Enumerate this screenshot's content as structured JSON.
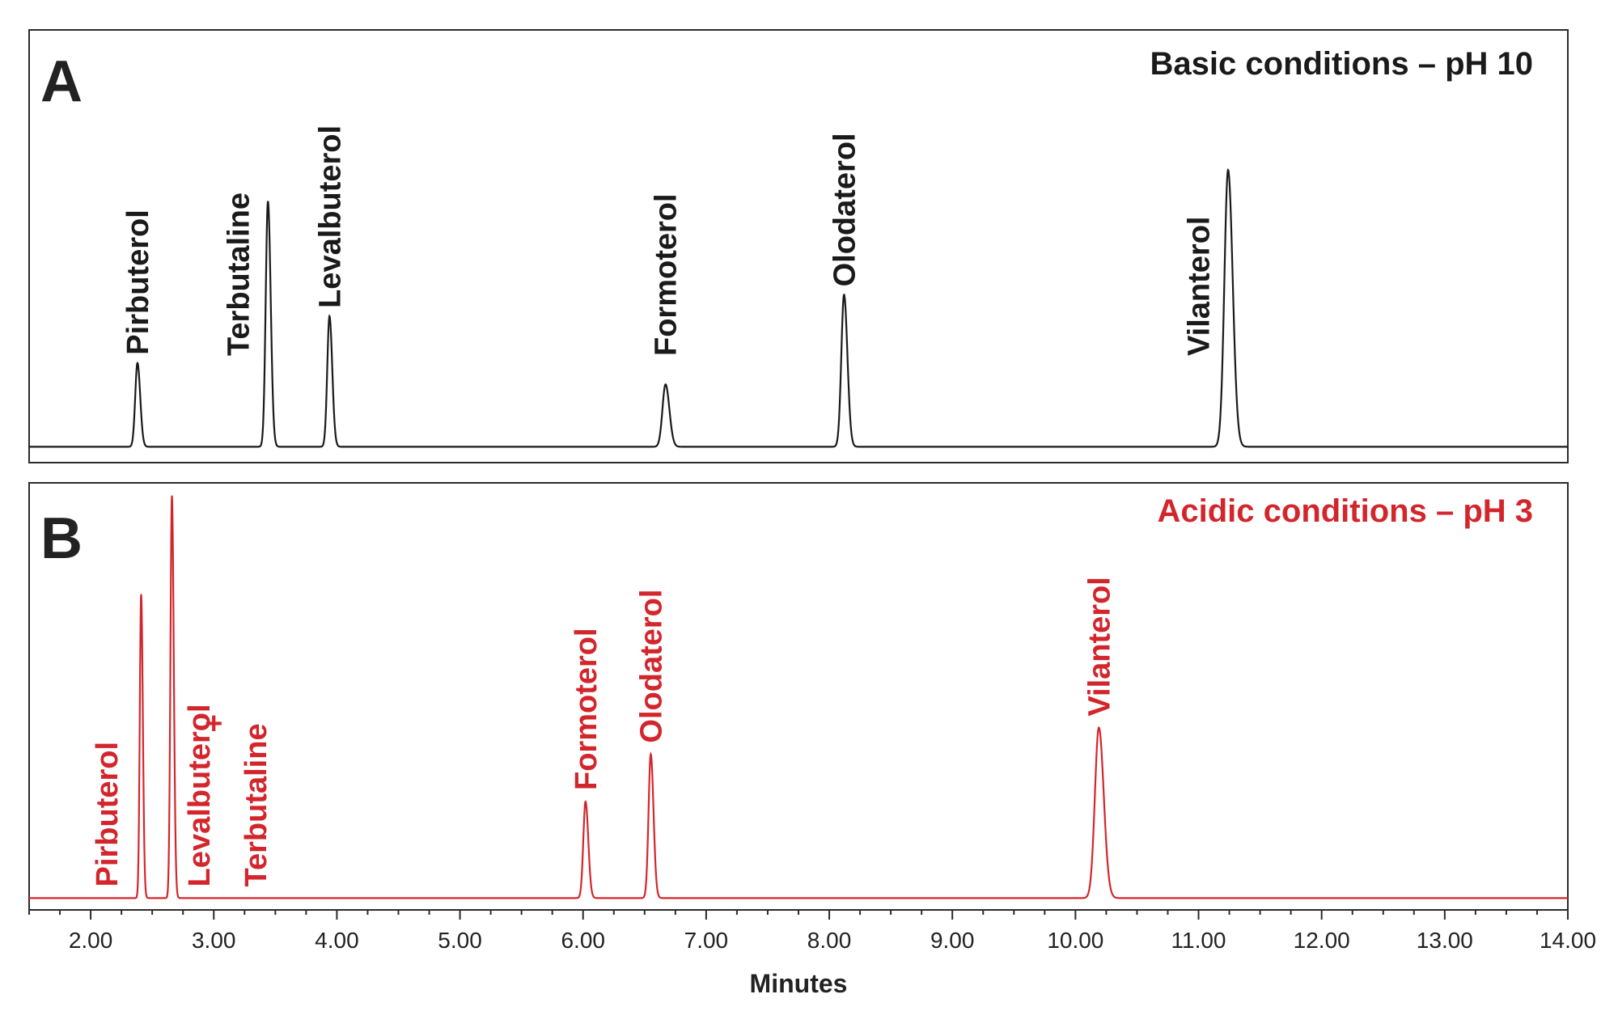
{
  "chart_data": [
    {
      "type": "line",
      "panel_label": "A",
      "title": "Basic conditions – pH 10",
      "color": "#1a1a1a",
      "xlim": [
        1.5,
        14.0
      ],
      "xlabel": "Minutes",
      "baseline": 0.02,
      "peaks": [
        {
          "name": "Pirbuterol",
          "rt": 2.38,
          "height": 0.215,
          "width": 0.018
        },
        {
          "name": "Terbutaline",
          "rt": 3.44,
          "height": 0.63,
          "width": 0.018
        },
        {
          "name": "Levalbuterol",
          "rt": 3.94,
          "height": 0.335,
          "width": 0.018
        },
        {
          "name": "Formoterol",
          "rt": 6.67,
          "height": 0.16,
          "width": 0.025
        },
        {
          "name": "Olodaterol",
          "rt": 8.12,
          "height": 0.39,
          "width": 0.022
        },
        {
          "name": "Vilanterol",
          "rt": 11.24,
          "height": 0.71,
          "width": 0.03
        }
      ],
      "labels": [
        {
          "text": "Pirbuterol",
          "rt": 2.38
        },
        {
          "text": "Terbutaline",
          "rt": 3.2
        },
        {
          "text": "Levalbuterol",
          "rt": 3.94
        },
        {
          "text": "Formoterol",
          "rt": 6.67
        },
        {
          "text": "Olodaterol",
          "rt": 8.12
        },
        {
          "text": "Vilanterol",
          "rt": 11.0
        }
      ]
    },
    {
      "type": "line",
      "panel_label": "B",
      "title": "Acidic conditions – pH 3",
      "color": "#d3262c",
      "xlim": [
        1.5,
        14.0
      ],
      "xlabel": "Minutes",
      "baseline": 0.015,
      "peaks": [
        {
          "name": "Pirbuterol",
          "rt": 2.41,
          "height": 0.74,
          "width": 0.011
        },
        {
          "name": "Levalbuterol + Terbutaline",
          "rt": 2.66,
          "height": 0.98,
          "width": 0.012
        },
        {
          "name": "Formoterol",
          "rt": 6.02,
          "height": 0.235,
          "width": 0.018
        },
        {
          "name": "Olodaterol",
          "rt": 6.55,
          "height": 0.35,
          "width": 0.018
        },
        {
          "name": "Vilanterol",
          "rt": 10.19,
          "height": 0.415,
          "width": 0.032
        }
      ],
      "labels": [
        {
          "text": "Pirbuterol",
          "rt": 2.13
        },
        {
          "text": "Levalbuterol",
          "rt": 2.88
        },
        {
          "text": "+",
          "rt": 3.0
        },
        {
          "text": "Terbutaline",
          "rt": 3.34
        },
        {
          "text": "Formoterol",
          "rt": 6.02
        },
        {
          "text": "Olodaterol",
          "rt": 6.55
        },
        {
          "text": "Vilanterol",
          "rt": 10.19
        }
      ]
    }
  ],
  "x_axis": {
    "label": "Minutes",
    "ticks": [
      "2.00",
      "3.00",
      "4.00",
      "5.00",
      "6.00",
      "7.00",
      "8.00",
      "9.00",
      "10.00",
      "11.00",
      "12.00",
      "13.00",
      "14.00"
    ]
  }
}
